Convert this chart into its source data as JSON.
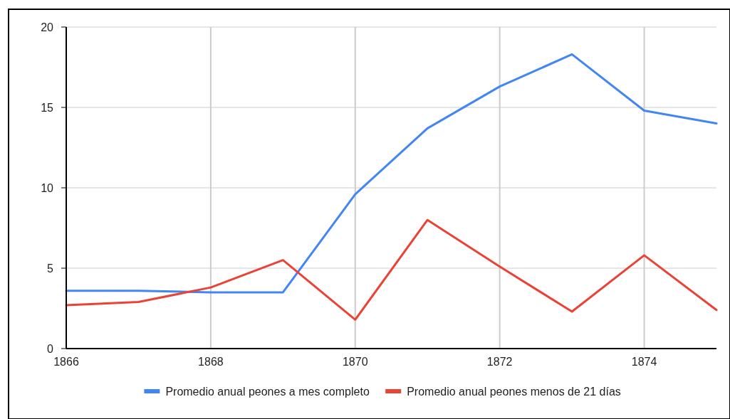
{
  "chart_data": {
    "type": "line",
    "x": [
      1866,
      1867,
      1868,
      1869,
      1870,
      1871,
      1872,
      1873,
      1874,
      1875
    ],
    "series": [
      {
        "name": "Promedio anual peones a mes completo",
        "color": "#4285f4",
        "values": [
          3.6,
          3.6,
          3.5,
          3.5,
          9.6,
          13.7,
          16.3,
          18.3,
          14.8,
          14.0
        ]
      },
      {
        "name": "Promedio anual peones menos de 21 días",
        "color": "#ea4335",
        "values": [
          2.7,
          2.9,
          3.8,
          5.5,
          1.8,
          8.0,
          5.1,
          2.3,
          5.8,
          2.4
        ]
      }
    ],
    "xlim": [
      1866,
      1875
    ],
    "xticks": [
      1866,
      1868,
      1870,
      1872,
      1874
    ],
    "ylim": [
      0,
      20
    ],
    "yticks": [
      0,
      5,
      10,
      15,
      20
    ],
    "grid": true,
    "legend": "bottom",
    "marker": "none",
    "line_style": "solid"
  }
}
